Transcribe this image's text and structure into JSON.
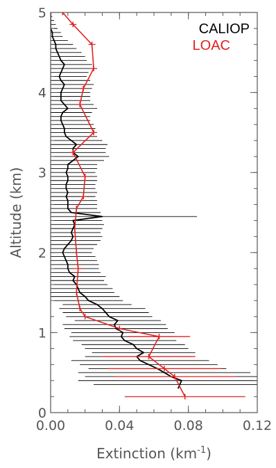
{
  "chart_data": {
    "type": "line",
    "title": "",
    "xlabel": "Extinction (km",
    "xlabel_unit_sup": "-1",
    "xlabel_close": ")",
    "ylabel": "Altitude (km)",
    "xlim": [
      0,
      0.12
    ],
    "ylim": [
      0,
      5
    ],
    "x_ticks": [
      "0.00",
      "0.04",
      "0.08",
      "0.12"
    ],
    "x_tick_values": [
      0,
      0.04,
      0.08,
      0.12
    ],
    "y_ticks": [
      "0",
      "1",
      "2",
      "3",
      "4",
      "5"
    ],
    "y_tick_values": [
      0,
      1,
      2,
      3,
      4,
      5
    ],
    "grid": false,
    "legend_position": "top-right",
    "series": [
      {
        "name": "CALIOP",
        "color": "#000000",
        "points": [
          [
            0.074,
            0.3,
            0.0
          ],
          [
            0.075,
            0.35,
            0.05
          ],
          [
            0.076,
            0.4,
            0.06
          ],
          [
            0.07,
            0.45,
            0.05
          ],
          [
            0.066,
            0.5,
            0.05
          ],
          [
            0.062,
            0.55,
            0.04
          ],
          [
            0.057,
            0.6,
            0.04
          ],
          [
            0.052,
            0.65,
            0.04
          ],
          [
            0.05,
            0.7,
            0.03
          ],
          [
            0.054,
            0.75,
            0.03
          ],
          [
            0.05,
            0.8,
            0.03
          ],
          [
            0.048,
            0.85,
            0.03
          ],
          [
            0.043,
            0.9,
            0.03
          ],
          [
            0.041,
            0.95,
            0.03
          ],
          [
            0.042,
            1.0,
            0.03
          ],
          [
            0.038,
            1.05,
            0.03
          ],
          [
            0.037,
            1.1,
            0.03
          ],
          [
            0.039,
            1.15,
            0.025
          ],
          [
            0.034,
            1.2,
            0.025
          ],
          [
            0.032,
            1.25,
            0.025
          ],
          [
            0.03,
            1.3,
            0.025
          ],
          [
            0.027,
            1.35,
            0.02
          ],
          [
            0.022,
            1.4,
            0.02
          ],
          [
            0.02,
            1.45,
            0.02
          ],
          [
            0.017,
            1.5,
            0.02
          ],
          [
            0.016,
            1.55,
            0.02
          ],
          [
            0.015,
            1.6,
            0.018
          ],
          [
            0.013,
            1.65,
            0.018
          ],
          [
            0.014,
            1.7,
            0.018
          ],
          [
            0.011,
            1.75,
            0.018
          ],
          [
            0.01,
            1.8,
            0.018
          ],
          [
            0.01,
            1.85,
            0.018
          ],
          [
            0.009,
            1.9,
            0.018
          ],
          [
            0.008,
            1.95,
            0.018
          ],
          [
            0.007,
            2.0,
            0.017
          ],
          [
            0.008,
            2.05,
            0.017
          ],
          [
            0.01,
            2.1,
            0.017
          ],
          [
            0.012,
            2.15,
            0.017
          ],
          [
            0.013,
            2.2,
            0.017
          ],
          [
            0.012,
            2.25,
            0.017
          ],
          [
            0.013,
            2.3,
            0.017
          ],
          [
            0.014,
            2.35,
            0.017
          ],
          [
            0.013,
            2.4,
            0.017
          ],
          [
            0.03,
            2.45,
            0.055
          ],
          [
            0.012,
            2.5,
            0.017
          ],
          [
            0.01,
            2.55,
            0.017
          ],
          [
            0.01,
            2.6,
            0.017
          ],
          [
            0.01,
            2.65,
            0.017
          ],
          [
            0.009,
            2.7,
            0.017
          ],
          [
            0.01,
            2.75,
            0.017
          ],
          [
            0.009,
            2.8,
            0.017
          ],
          [
            0.009,
            2.85,
            0.017
          ],
          [
            0.01,
            2.9,
            0.017
          ],
          [
            0.01,
            2.95,
            0.017
          ],
          [
            0.009,
            3.0,
            0.017
          ],
          [
            0.01,
            3.05,
            0.017
          ],
          [
            0.01,
            3.1,
            0.017
          ],
          [
            0.013,
            3.15,
            0.018
          ],
          [
            0.016,
            3.2,
            0.018
          ],
          [
            0.013,
            3.25,
            0.019
          ],
          [
            0.013,
            3.3,
            0.019
          ],
          [
            0.015,
            3.35,
            0.018
          ],
          [
            0.012,
            3.4,
            0.018
          ],
          [
            0.009,
            3.45,
            0.018
          ],
          [
            0.008,
            3.5,
            0.018
          ],
          [
            0.008,
            3.55,
            0.018
          ],
          [
            0.007,
            3.6,
            0.018
          ],
          [
            0.006,
            3.65,
            0.017
          ],
          [
            0.006,
            3.7,
            0.017
          ],
          [
            0.007,
            3.75,
            0.017
          ],
          [
            0.01,
            3.8,
            0.017
          ],
          [
            0.008,
            3.85,
            0.017
          ],
          [
            0.006,
            3.9,
            0.017
          ],
          [
            0.006,
            3.95,
            0.017
          ],
          [
            0.006,
            4.0,
            0.017
          ],
          [
            0.007,
            4.05,
            0.017
          ],
          [
            0.008,
            4.1,
            0.017
          ],
          [
            0.006,
            4.15,
            0.017
          ],
          [
            0.005,
            4.2,
            0.016
          ],
          [
            0.006,
            4.25,
            0.016
          ],
          [
            0.007,
            4.3,
            0.016
          ],
          [
            0.008,
            4.35,
            0.016
          ],
          [
            0.006,
            4.4,
            0.015
          ],
          [
            0.005,
            4.45,
            0.015
          ],
          [
            0.004,
            4.5,
            0.014
          ],
          [
            0.003,
            4.55,
            0.012
          ],
          [
            0.003,
            4.6,
            0.01
          ],
          [
            0.002,
            4.65,
            0.008
          ],
          [
            0.001,
            4.7,
            0.006
          ],
          [
            0.001,
            4.75,
            0.005
          ],
          [
            0.0,
            4.8,
            0.004
          ],
          [
            0.0,
            4.85,
            0.003
          ],
          [
            0.0,
            4.9,
            0.002
          ],
          [
            0.0,
            4.95,
            0.001
          ],
          [
            0.0,
            5.0,
            0.0
          ]
        ]
      },
      {
        "name": "LOAC",
        "color": "#e02020",
        "points": [
          [
            0.078,
            0.2,
            0.035
          ],
          [
            0.072,
            0.45,
            0.035
          ],
          [
            0.066,
            0.55,
            0.033
          ],
          [
            0.057,
            0.7,
            0.027
          ],
          [
            0.063,
            0.95,
            0.018
          ],
          [
            0.04,
            1.05,
            0.0
          ],
          [
            0.02,
            1.2,
            0.0
          ],
          [
            0.017,
            1.3,
            0.0
          ],
          [
            0.015,
            1.5,
            0.0
          ],
          [
            0.016,
            1.8,
            0.003
          ],
          [
            0.015,
            2.0,
            0.0
          ],
          [
            0.014,
            2.3,
            0.0
          ],
          [
            0.015,
            2.55,
            0.0
          ],
          [
            0.019,
            2.7,
            0.002
          ],
          [
            0.02,
            2.95,
            0.002
          ],
          [
            0.013,
            3.25,
            0.002
          ],
          [
            0.025,
            3.5,
            0.002
          ],
          [
            0.017,
            3.85,
            0.002
          ],
          [
            0.019,
            4.05,
            0.002
          ],
          [
            0.025,
            4.3,
            0.002
          ],
          [
            0.024,
            4.6,
            0.002
          ],
          [
            0.013,
            4.85,
            0.002
          ],
          [
            0.007,
            5.0,
            0.0
          ]
        ]
      }
    ]
  }
}
